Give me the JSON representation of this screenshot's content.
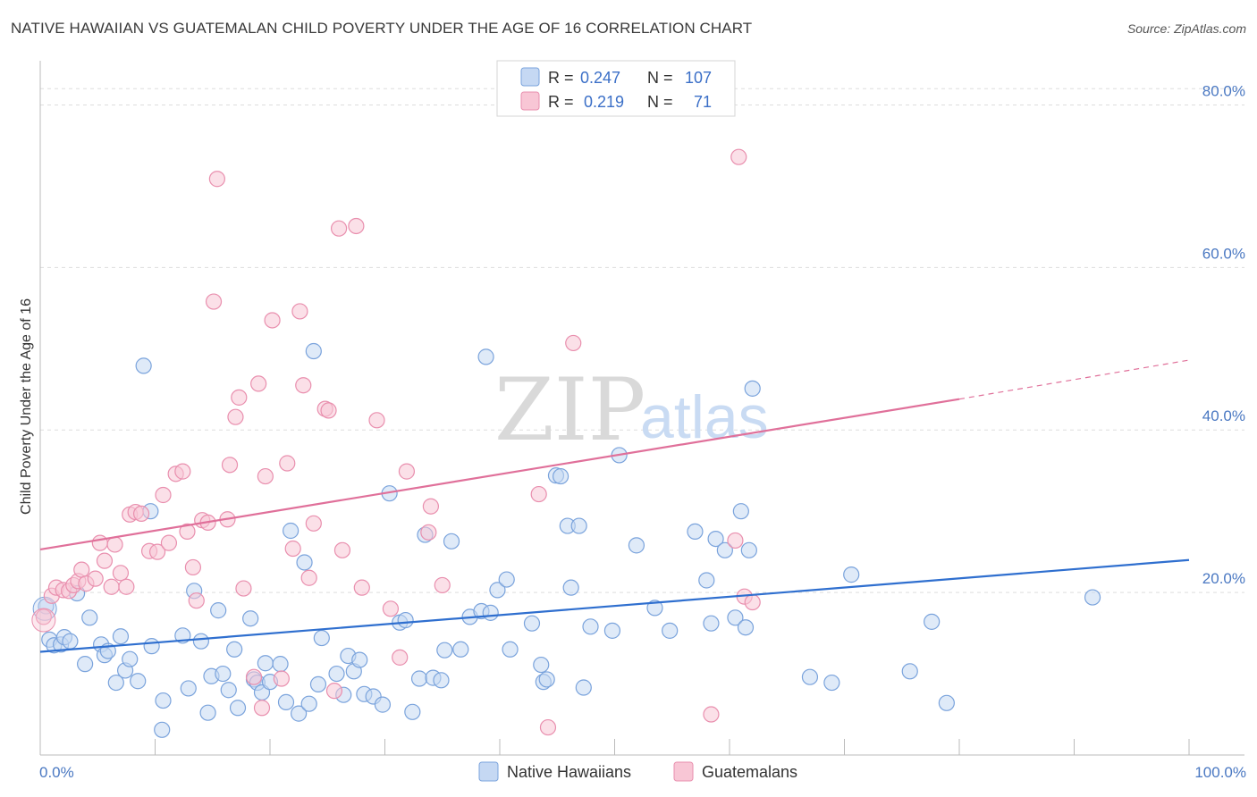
{
  "header": {
    "title": "NATIVE HAWAIIAN VS GUATEMALAN CHILD POVERTY UNDER THE AGE OF 16 CORRELATION CHART",
    "source": "Source: ZipAtlas.com"
  },
  "watermark": {
    "zip": "ZIP",
    "atlas": "atlas"
  },
  "legend": {
    "rows": [
      {
        "r_label": "R =",
        "r_value": "0.247",
        "n_label": "N =",
        "n_value": "107"
      },
      {
        "r_label": "R =",
        "r_value": "0.219",
        "n_label": "N =",
        "n_value": "71"
      }
    ]
  },
  "chart_data": {
    "type": "scatter",
    "title": "NATIVE HAWAIIAN VS GUATEMALAN CHILD POVERTY UNDER THE AGE OF 16 CORRELATION CHART",
    "xlabel": "",
    "ylabel": "Child Poverty Under the Age of 16",
    "xlim": [
      0,
      100
    ],
    "ylim": [
      0,
      85
    ],
    "x_tick_labels": [
      "0.0%",
      "100.0%"
    ],
    "y_ticks": [
      20,
      40,
      60,
      80
    ],
    "y_tick_labels": [
      "20.0%",
      "40.0%",
      "60.0%",
      "80.0%"
    ],
    "grid": true,
    "legend_position": "top-center",
    "colors": {
      "native_fill": "#c5d8f3",
      "native_stroke": "#7aa3dc",
      "native_line": "#2f6fcf",
      "guat_fill": "#f8c6d5",
      "guat_stroke": "#e98fae",
      "guat_line": "#e0709a"
    },
    "series": [
      {
        "name": "Native Hawaiians",
        "r": 0.247,
        "n": 107,
        "trend": {
          "x0": 0,
          "y0": 12.7,
          "x1": 100,
          "y1": 24.0
        },
        "points": [
          [
            0.5,
            18.3
          ],
          [
            0.8,
            14.2
          ],
          [
            1.2,
            13.5
          ],
          [
            1.8,
            13.6
          ],
          [
            2.1,
            14.5
          ],
          [
            2.6,
            14.0
          ],
          [
            3.2,
            19.9
          ],
          [
            3.9,
            11.2
          ],
          [
            4.3,
            16.9
          ],
          [
            5.3,
            13.6
          ],
          [
            5.6,
            12.3
          ],
          [
            5.9,
            12.8
          ],
          [
            6.6,
            8.9
          ],
          [
            7.0,
            14.6
          ],
          [
            7.4,
            10.4
          ],
          [
            7.8,
            11.8
          ],
          [
            8.5,
            9.1
          ],
          [
            9.0,
            47.9
          ],
          [
            9.6,
            30.0
          ],
          [
            9.7,
            13.4
          ],
          [
            10.6,
            3.1
          ],
          [
            10.7,
            6.7
          ],
          [
            12.4,
            14.7
          ],
          [
            12.9,
            8.2
          ],
          [
            13.4,
            20.2
          ],
          [
            14.0,
            14.0
          ],
          [
            14.6,
            5.2
          ],
          [
            14.9,
            9.7
          ],
          [
            15.5,
            17.8
          ],
          [
            15.9,
            10.0
          ],
          [
            16.4,
            8.0
          ],
          [
            16.9,
            13.0
          ],
          [
            17.2,
            5.8
          ],
          [
            18.3,
            16.8
          ],
          [
            18.6,
            9.3
          ],
          [
            18.9,
            8.9
          ],
          [
            19.3,
            7.7
          ],
          [
            19.6,
            11.3
          ],
          [
            20.0,
            9.0
          ],
          [
            20.9,
            11.2
          ],
          [
            21.4,
            6.5
          ],
          [
            21.8,
            27.6
          ],
          [
            22.5,
            5.1
          ],
          [
            23.0,
            23.7
          ],
          [
            23.4,
            6.3
          ],
          [
            23.8,
            49.7
          ],
          [
            24.2,
            8.7
          ],
          [
            24.5,
            14.4
          ],
          [
            25.8,
            10.0
          ],
          [
            26.4,
            7.4
          ],
          [
            26.8,
            12.2
          ],
          [
            27.3,
            10.3
          ],
          [
            27.8,
            11.7
          ],
          [
            28.2,
            7.5
          ],
          [
            29.0,
            7.2
          ],
          [
            29.8,
            6.2
          ],
          [
            30.4,
            32.2
          ],
          [
            31.3,
            16.3
          ],
          [
            31.8,
            16.6
          ],
          [
            32.4,
            5.3
          ],
          [
            33.0,
            9.4
          ],
          [
            33.5,
            27.1
          ],
          [
            34.2,
            9.5
          ],
          [
            34.9,
            9.2
          ],
          [
            35.2,
            12.9
          ],
          [
            35.8,
            26.3
          ],
          [
            36.6,
            13.0
          ],
          [
            37.4,
            17.0
          ],
          [
            38.4,
            17.7
          ],
          [
            38.8,
            49.0
          ],
          [
            39.2,
            17.5
          ],
          [
            39.8,
            20.3
          ],
          [
            40.6,
            21.6
          ],
          [
            40.9,
            13.0
          ],
          [
            42.8,
            16.2
          ],
          [
            43.6,
            11.1
          ],
          [
            43.8,
            9.0
          ],
          [
            44.1,
            9.3
          ],
          [
            44.9,
            34.4
          ],
          [
            45.3,
            34.3
          ],
          [
            45.9,
            28.2
          ],
          [
            46.2,
            20.6
          ],
          [
            46.9,
            28.2
          ],
          [
            47.3,
            8.3
          ],
          [
            47.9,
            15.8
          ],
          [
            49.8,
            15.3
          ],
          [
            50.4,
            36.9
          ],
          [
            51.9,
            25.8
          ],
          [
            53.5,
            18.1
          ],
          [
            54.8,
            15.3
          ],
          [
            57.0,
            27.5
          ],
          [
            58.0,
            21.5
          ],
          [
            58.4,
            16.2
          ],
          [
            58.8,
            26.6
          ],
          [
            59.6,
            25.2
          ],
          [
            60.5,
            16.9
          ],
          [
            61.0,
            30.0
          ],
          [
            61.4,
            15.7
          ],
          [
            61.7,
            25.2
          ],
          [
            62.0,
            45.1
          ],
          [
            67.0,
            9.6
          ],
          [
            68.9,
            8.9
          ],
          [
            70.6,
            22.2
          ],
          [
            75.7,
            10.3
          ],
          [
            77.6,
            16.4
          ],
          [
            78.9,
            6.4
          ],
          [
            91.6,
            19.4
          ]
        ]
      },
      {
        "name": "Guatemalans",
        "r": 0.219,
        "n": 71,
        "trend": {
          "x0": 0,
          "y0": 25.3,
          "x1": 80,
          "y1": 43.8,
          "dash_to_x": 100,
          "dash_to_y": 48.6
        },
        "points": [
          [
            0.3,
            17.0
          ],
          [
            1.0,
            19.6
          ],
          [
            1.4,
            20.6
          ],
          [
            2.0,
            20.3
          ],
          [
            2.5,
            20.2
          ],
          [
            2.9,
            20.9
          ],
          [
            3.3,
            21.4
          ],
          [
            3.6,
            22.8
          ],
          [
            4.0,
            21.1
          ],
          [
            4.8,
            21.7
          ],
          [
            5.2,
            26.1
          ],
          [
            5.6,
            23.9
          ],
          [
            6.2,
            20.7
          ],
          [
            6.5,
            25.9
          ],
          [
            7.0,
            22.4
          ],
          [
            7.5,
            20.7
          ],
          [
            7.8,
            29.6
          ],
          [
            8.3,
            29.9
          ],
          [
            8.8,
            29.7
          ],
          [
            9.5,
            25.1
          ],
          [
            10.2,
            25.0
          ],
          [
            10.7,
            32.0
          ],
          [
            11.2,
            26.1
          ],
          [
            11.8,
            34.6
          ],
          [
            12.4,
            34.9
          ],
          [
            12.8,
            27.5
          ],
          [
            13.3,
            23.1
          ],
          [
            13.6,
            19.0
          ],
          [
            14.1,
            28.9
          ],
          [
            14.6,
            28.6
          ],
          [
            15.1,
            55.8
          ],
          [
            15.4,
            70.9
          ],
          [
            16.3,
            29.0
          ],
          [
            16.5,
            35.7
          ],
          [
            17.0,
            41.6
          ],
          [
            17.3,
            44.0
          ],
          [
            17.7,
            20.5
          ],
          [
            18.6,
            9.6
          ],
          [
            19.0,
            45.7
          ],
          [
            19.3,
            5.8
          ],
          [
            19.6,
            34.3
          ],
          [
            20.2,
            53.5
          ],
          [
            21.0,
            9.4
          ],
          [
            21.5,
            35.9
          ],
          [
            22.0,
            25.4
          ],
          [
            22.6,
            54.6
          ],
          [
            22.9,
            45.5
          ],
          [
            23.4,
            21.8
          ],
          [
            23.8,
            28.5
          ],
          [
            24.8,
            42.6
          ],
          [
            25.1,
            42.4
          ],
          [
            25.6,
            7.9
          ],
          [
            26.0,
            64.8
          ],
          [
            26.3,
            25.2
          ],
          [
            27.5,
            65.1
          ],
          [
            28.0,
            20.6
          ],
          [
            29.3,
            41.2
          ],
          [
            30.5,
            18.0
          ],
          [
            31.3,
            12.0
          ],
          [
            31.9,
            34.9
          ],
          [
            33.8,
            27.4
          ],
          [
            34.0,
            30.6
          ],
          [
            35.0,
            20.9
          ],
          [
            43.4,
            32.1
          ],
          [
            44.2,
            3.4
          ],
          [
            46.4,
            50.7
          ],
          [
            58.4,
            5.0
          ],
          [
            60.5,
            26.4
          ],
          [
            60.8,
            73.6
          ],
          [
            61.3,
            19.5
          ],
          [
            62.0,
            18.8
          ]
        ]
      }
    ]
  }
}
